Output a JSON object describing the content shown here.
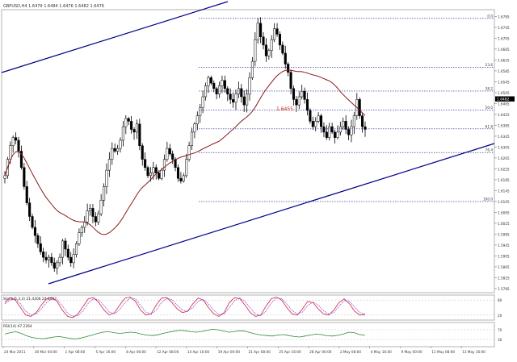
{
  "header": {
    "symbol_line": "GBPUSD,H4 1.6479 1.6484 1.6476 1.6482 1.6476"
  },
  "colors": {
    "background": "#ffffff",
    "candle_color": "#000000",
    "moving_average": "#8b1a1a",
    "channel_lines": "#00008b",
    "fib_lines": "#1a1a8b",
    "fib_label_red": "#cc2222",
    "current_price_bg": "#000000",
    "current_price_text": "#ffffff",
    "stoch_main": "#cc2244",
    "stoch_signal": "#8844cc",
    "rsi_line": "#2e8b2e",
    "grid": "#c0c0c0",
    "axis_text": "#333333"
  },
  "chart_data": [
    {
      "type": "candlestick",
      "pane": "main",
      "title": "GBPUSD,H4",
      "ylim": [
        1.577,
        1.681
      ],
      "y_ticks": [
        1.6785,
        1.6745,
        1.6705,
        1.6665,
        1.6625,
        1.6585,
        1.6545,
        1.6505,
        1.6465,
        1.6425,
        1.6385,
        1.6345,
        1.6305,
        1.6265,
        1.6225,
        1.6185,
        1.6145,
        1.6105,
        1.6065,
        1.6025,
        1.5985,
        1.5945,
        1.5905,
        1.5865,
        1.5825,
        1.5785
      ],
      "current_price": "1.6482",
      "fibonacci": {
        "levels": [
          "0.0",
          "23.6",
          "38.2",
          "50.0",
          "61.8",
          "76.4",
          "100.0"
        ],
        "prices": [
          1.6778,
          1.6598,
          1.6511,
          1.6441,
          1.6372,
          1.6285,
          1.6105
        ],
        "marker_label": "1.6455"
      },
      "x_tick_labels": [
        "24 Mar 2011",
        "30 Mar 04:00",
        "1 Apr 08:00",
        "5 Apr 16:00",
        "8 Apr 00:00",
        "12 Apr 08:00",
        "14 Apr 16:00",
        "19 Apr 00:00",
        "21 Apr 08:00",
        "25 Apr 16:00",
        "28 Apr 00:00",
        "2 May 08:00",
        "4 May 16:00",
        "9 May 00:00",
        "11 May 08:00",
        "13 May 16:00"
      ],
      "closes": [
        1.62,
        1.626,
        1.631,
        1.634,
        1.633,
        1.629,
        1.623,
        1.616,
        1.61,
        1.605,
        1.601,
        1.598,
        1.595,
        1.592,
        1.59,
        1.589,
        1.59,
        1.588,
        1.586,
        1.588,
        1.59,
        1.596,
        1.593,
        1.59,
        1.588,
        1.591,
        1.595,
        1.599,
        1.601,
        1.603,
        1.607,
        1.608,
        1.605,
        1.603,
        1.606,
        1.611,
        1.616,
        1.622,
        1.626,
        1.63,
        1.629,
        1.63,
        1.633,
        1.638,
        1.641,
        1.64,
        1.637,
        1.636,
        1.639,
        1.631,
        1.626,
        1.623,
        1.62,
        1.621,
        1.623,
        1.621,
        1.619,
        1.622,
        1.626,
        1.63,
        1.628,
        1.626,
        1.623,
        1.619,
        1.618,
        1.62,
        1.626,
        1.631,
        1.636,
        1.639,
        1.642,
        1.645,
        1.649,
        1.653,
        1.656,
        1.654,
        1.652,
        1.65,
        1.653,
        1.655,
        1.652,
        1.65,
        1.648,
        1.647,
        1.65,
        1.652,
        1.649,
        1.646,
        1.65,
        1.656,
        1.662,
        1.67,
        1.676,
        1.671,
        1.668,
        1.664,
        1.666,
        1.67,
        1.674,
        1.672,
        1.668,
        1.665,
        1.661,
        1.658,
        1.652,
        1.648,
        1.646,
        1.649,
        1.651,
        1.648,
        1.644,
        1.64,
        1.638,
        1.64,
        1.642,
        1.638,
        1.636,
        1.634,
        1.638,
        1.636,
        1.634,
        1.636,
        1.638,
        1.64,
        1.637,
        1.635,
        1.638,
        1.642,
        1.648,
        1.642,
        1.638,
        1.637
      ],
      "ma_period": 30
    },
    {
      "type": "line",
      "pane": "stochastic",
      "title": "Stoch(5,3,3) 21.4306 24.8087",
      "ylim": [
        0,
        100
      ],
      "y_ticks": [
        80,
        20
      ],
      "series": [
        {
          "name": "main",
          "values": [
            70,
            90,
            80,
            50,
            20,
            15,
            30,
            60,
            85,
            90,
            75,
            40,
            15,
            10,
            25,
            55,
            85,
            90,
            70,
            40,
            20,
            30,
            60,
            88,
            92,
            75,
            40,
            20,
            25,
            60,
            88,
            90,
            70,
            45,
            30,
            35,
            65,
            88,
            80,
            50,
            25,
            15,
            30,
            70,
            90,
            85,
            60,
            30,
            15,
            20,
            55,
            85,
            92,
            80,
            50,
            25,
            20,
            45,
            75,
            70,
            45,
            25,
            20,
            40,
            70,
            85,
            65,
            35,
            20,
            22
          ]
        },
        {
          "name": "signal",
          "values": [
            65,
            80,
            85,
            65,
            35,
            20,
            25,
            45,
            70,
            85,
            82,
            58,
            28,
            15,
            18,
            38,
            68,
            85,
            80,
            58,
            32,
            25,
            42,
            70,
            88,
            85,
            58,
            32,
            24,
            40,
            70,
            86,
            82,
            60,
            40,
            35,
            50,
            75,
            82,
            65,
            40,
            22,
            25,
            50,
            78,
            88,
            75,
            48,
            25,
            18,
            35,
            68,
            88,
            86,
            65,
            38,
            24,
            32,
            58,
            72,
            60,
            38,
            24,
            30,
            55,
            78,
            75,
            52,
            30,
            24
          ]
        }
      ]
    },
    {
      "type": "line",
      "pane": "rsi",
      "title": "RSI(14) 47.2264",
      "ylim": [
        0,
        100
      ],
      "y_ticks": [
        30,
        70
      ],
      "series": [
        {
          "name": "RSI",
          "values": [
            52,
            58,
            62,
            55,
            45,
            38,
            35,
            33,
            36,
            40,
            42,
            38,
            34,
            32,
            36,
            42,
            48,
            55,
            60,
            62,
            58,
            55,
            57,
            60,
            58,
            52,
            48,
            46,
            49,
            55,
            60,
            64,
            68,
            66,
            62,
            60,
            63,
            67,
            72,
            70,
            65,
            60,
            62,
            66,
            64,
            58,
            52,
            48,
            46,
            44,
            48,
            50,
            46,
            42,
            40,
            44,
            48,
            52,
            50,
            45,
            44,
            47,
            52,
            60,
            58,
            50,
            47
          ]
        }
      ]
    }
  ]
}
